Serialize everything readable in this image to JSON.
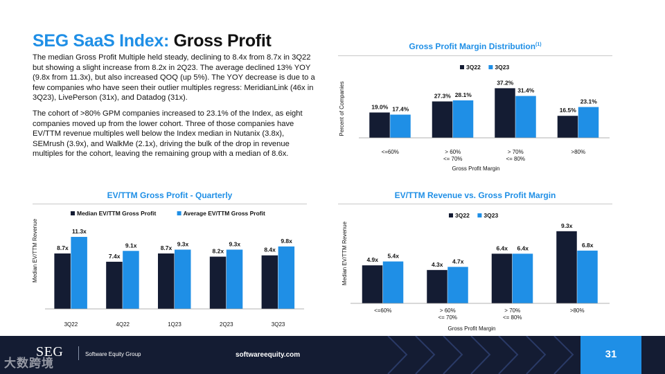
{
  "title": {
    "accent": "SEG SaaS Index:",
    "rest": "Gross Profit"
  },
  "paragraphs": [
    "The median Gross Profit Multiple held steady, declining to 8.4x from 8.7x in 3Q22 but showing a slight increase from 8.2x in 2Q23. The average declined 13% YOY (9.8x from 11.3x), but also increased QOQ (up 5%). The YOY decrease is due to a few companies who have seen their outlier multiples regress: MeridianLink (46x in 3Q23), LivePerson (31x), and Datadog (31x).",
    "The cohort of >80% GPM companies increased to 23.1% of the Index, as eight companies moved up from the lower cohort. Three of those companies have EV/TTM revenue multiples well below the Index median in Nutanix (3.8x), SEMrush (3.9x), and WalkMe (2.1x), driving the bulk of the drop in revenue multiples for the cohort, leaving the remaining group with a median of 8.6x."
  ],
  "colors": {
    "accent": "#1f8fe6",
    "dark": "#141c33",
    "footer": "#141c33"
  },
  "chart_data": [
    {
      "id": "gpm_distribution",
      "type": "bar",
      "title": "Gross Profit Margin Distribution",
      "title_superscript": "(1)",
      "xlabel": "Gross Profit Margin",
      "ylabel": "Percent of Companies",
      "categories": [
        [
          "<=60%"
        ],
        [
          "> 60%",
          "<= 70%"
        ],
        [
          "> 70%",
          "<= 80%"
        ],
        [
          ">80%"
        ]
      ],
      "series": [
        {
          "name": "3Q22",
          "values": [
            19.0,
            27.3,
            37.2,
            16.5
          ],
          "labels": [
            "19.0%",
            "27.3%",
            "37.2%",
            "16.5%"
          ]
        },
        {
          "name": "3Q23",
          "values": [
            17.4,
            28.1,
            31.4,
            23.1
          ],
          "labels": [
            "17.4%",
            "28.1%",
            "31.4%",
            "23.1%"
          ]
        }
      ],
      "ylim": [
        0,
        40
      ],
      "legend": "top-center",
      "grid": false
    },
    {
      "id": "ev_ttm_gross_profit",
      "type": "bar",
      "title": "EV/TTM Gross Profit - Quarterly",
      "xlabel": "",
      "ylabel": "Median EV/TTM Revenue",
      "categories": [
        [
          "3Q22"
        ],
        [
          "4Q22"
        ],
        [
          "1Q23"
        ],
        [
          "2Q23"
        ],
        [
          "3Q23"
        ]
      ],
      "series": [
        {
          "name": "Median EV/TTM Gross Profit",
          "values": [
            8.7,
            7.4,
            8.7,
            8.2,
            8.4
          ],
          "labels": [
            "8.7x",
            "7.4x",
            "8.7x",
            "8.2x",
            "8.4x"
          ]
        },
        {
          "name": "Average EV/TTM Gross Profit",
          "values": [
            11.3,
            9.1,
            9.3,
            9.3,
            9.8
          ],
          "labels": [
            "11.3x",
            "9.1x",
            "9.3x",
            "9.3x",
            "9.8x"
          ]
        }
      ],
      "ylim": [
        0,
        12.5
      ],
      "legend": "top-center",
      "grid": false
    },
    {
      "id": "ev_ttm_revenue_vs_gpm",
      "type": "bar",
      "title": "EV/TTM Revenue vs. Gross Profit Margin",
      "xlabel": "Gross Profit Margin",
      "ylabel": "Median EV/TTM Revenue",
      "categories": [
        [
          "<=60%"
        ],
        [
          "> 60%",
          "<= 70%"
        ],
        [
          "> 70%",
          "<= 80%"
        ],
        [
          ">80%"
        ]
      ],
      "series": [
        {
          "name": "3Q22",
          "values": [
            4.9,
            4.3,
            6.4,
            9.3
          ],
          "labels": [
            "4.9x",
            "4.3x",
            "6.4x",
            "9.3x"
          ]
        },
        {
          "name": "3Q23",
          "values": [
            5.4,
            4.7,
            6.4,
            6.8
          ],
          "labels": [
            "5.4x",
            "4.7x",
            "6.4x",
            "6.8x"
          ]
        }
      ],
      "ylim": [
        0,
        10
      ],
      "legend": "top-center",
      "grid": false
    }
  ],
  "footer": {
    "logo": "SEG",
    "company": "Software Equity Group",
    "website": "softwareequity.com",
    "page_number": "31",
    "watermark": "大数跨境"
  }
}
